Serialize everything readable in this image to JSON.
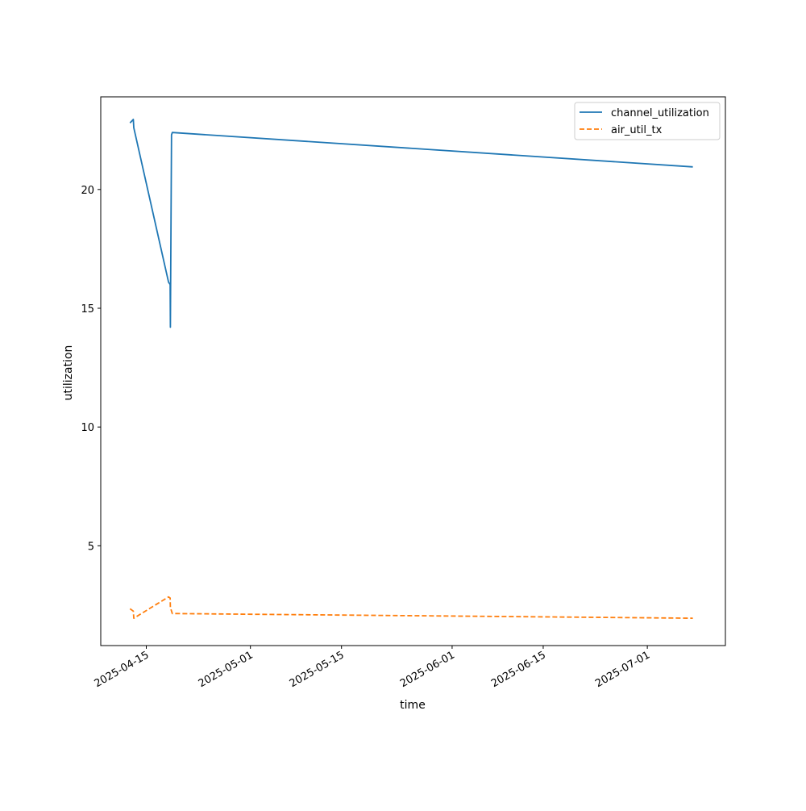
{
  "chart_data": {
    "type": "line",
    "title": "",
    "xlabel": "time",
    "ylabel": "utilization",
    "x_tick_labels": [
      "2025-04-15",
      "2025-05-01",
      "2025-05-15",
      "2025-06-01",
      "2025-06-15",
      "2025-07-01"
    ],
    "y_tick_labels": [
      "5",
      "10",
      "15",
      "20"
    ],
    "x_range": [
      "2025-04-08",
      "2025-07-13"
    ],
    "ylim": [
      0.8,
      23.9
    ],
    "grid": false,
    "legend": "top-right",
    "series": [
      {
        "name": "channel_utilization",
        "color": "#1f77b4",
        "dash": "solid",
        "x": [
          "2025-04-12 12:00",
          "2025-04-13 00:00",
          "2025-04-13 02:00",
          "2025-04-18 10:00",
          "2025-04-18 16:00",
          "2025-04-18 17:00",
          "2025-04-18 21:00",
          "2025-04-19 00:00",
          "2025-07-08 00:00"
        ],
        "y": [
          22.8,
          22.95,
          22.6,
          16.1,
          16.0,
          14.2,
          22.3,
          22.4,
          20.95
        ]
      },
      {
        "name": "air_util_tx",
        "color": "#ff7f0e",
        "dash": "dashed",
        "x": [
          "2025-04-12 12:00",
          "2025-04-13 00:00",
          "2025-04-13 02:00",
          "2025-04-18 10:00",
          "2025-04-18 16:00",
          "2025-04-18 17:00",
          "2025-04-19 00:00",
          "2025-07-08 00:00"
        ],
        "y": [
          2.35,
          2.25,
          1.95,
          2.85,
          2.8,
          2.4,
          2.15,
          1.95
        ]
      }
    ]
  }
}
